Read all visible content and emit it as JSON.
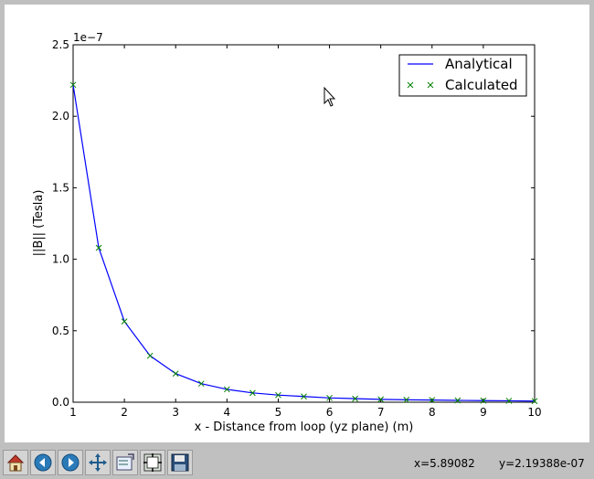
{
  "toolbar": {
    "buttons": [
      {
        "name": "home",
        "icon": "home-icon"
      },
      {
        "name": "back",
        "icon": "back-arrow-icon"
      },
      {
        "name": "forward",
        "icon": "forward-arrow-icon"
      },
      {
        "name": "pan",
        "icon": "pan-move-icon"
      },
      {
        "name": "zoom",
        "icon": "zoom-rect-icon"
      },
      {
        "name": "subplots",
        "icon": "subplots-config-icon"
      },
      {
        "name": "save",
        "icon": "floppy-save-icon"
      }
    ],
    "x_readout": "x=5.89082",
    "y_readout": "y=2.19388e-07"
  },
  "colors": {
    "analytical": "#0000ff",
    "calculated": "#008000",
    "window_bg": "#bfbfbf"
  },
  "chart_data": {
    "type": "line",
    "title": "",
    "xlabel": "x - Distance from loop (yz plane) (m)",
    "ylabel": "||B|| (Tesla)",
    "y_offset_label": "1e−7",
    "xlim": [
      1,
      10
    ],
    "ylim": [
      0,
      2.5
    ],
    "xticks": [
      1,
      2,
      3,
      4,
      5,
      6,
      7,
      8,
      9,
      10
    ],
    "xtick_labels": [
      "1",
      "2",
      "3",
      "4",
      "5",
      "6",
      "7",
      "8",
      "9",
      "10"
    ],
    "yticks": [
      0,
      0.5,
      1.0,
      1.5,
      2.0,
      2.5
    ],
    "ytick_labels": [
      "0.0",
      "0.5",
      "1.0",
      "1.5",
      "2.0",
      "2.5"
    ],
    "grid": false,
    "legend_position": "top-right",
    "x": [
      1,
      1.5,
      2,
      2.5,
      3,
      3.5,
      4,
      4.5,
      5,
      5.5,
      6,
      6.5,
      7,
      7.5,
      8,
      8.5,
      9,
      9.5,
      10
    ],
    "series": [
      {
        "name": "Analytical",
        "style": "line",
        "values": [
          2.22,
          1.08,
          0.565,
          0.325,
          0.2,
          0.13,
          0.09,
          0.065,
          0.05,
          0.04,
          0.03,
          0.025,
          0.02,
          0.017,
          0.015,
          0.013,
          0.011,
          0.01,
          0.008
        ]
      },
      {
        "name": "Calculated",
        "style": "x-marker",
        "values": [
          2.22,
          1.08,
          0.565,
          0.325,
          0.2,
          0.13,
          0.09,
          0.065,
          0.05,
          0.04,
          0.03,
          0.025,
          0.02,
          0.017,
          0.015,
          0.013,
          0.011,
          0.01,
          0.008
        ]
      }
    ]
  }
}
